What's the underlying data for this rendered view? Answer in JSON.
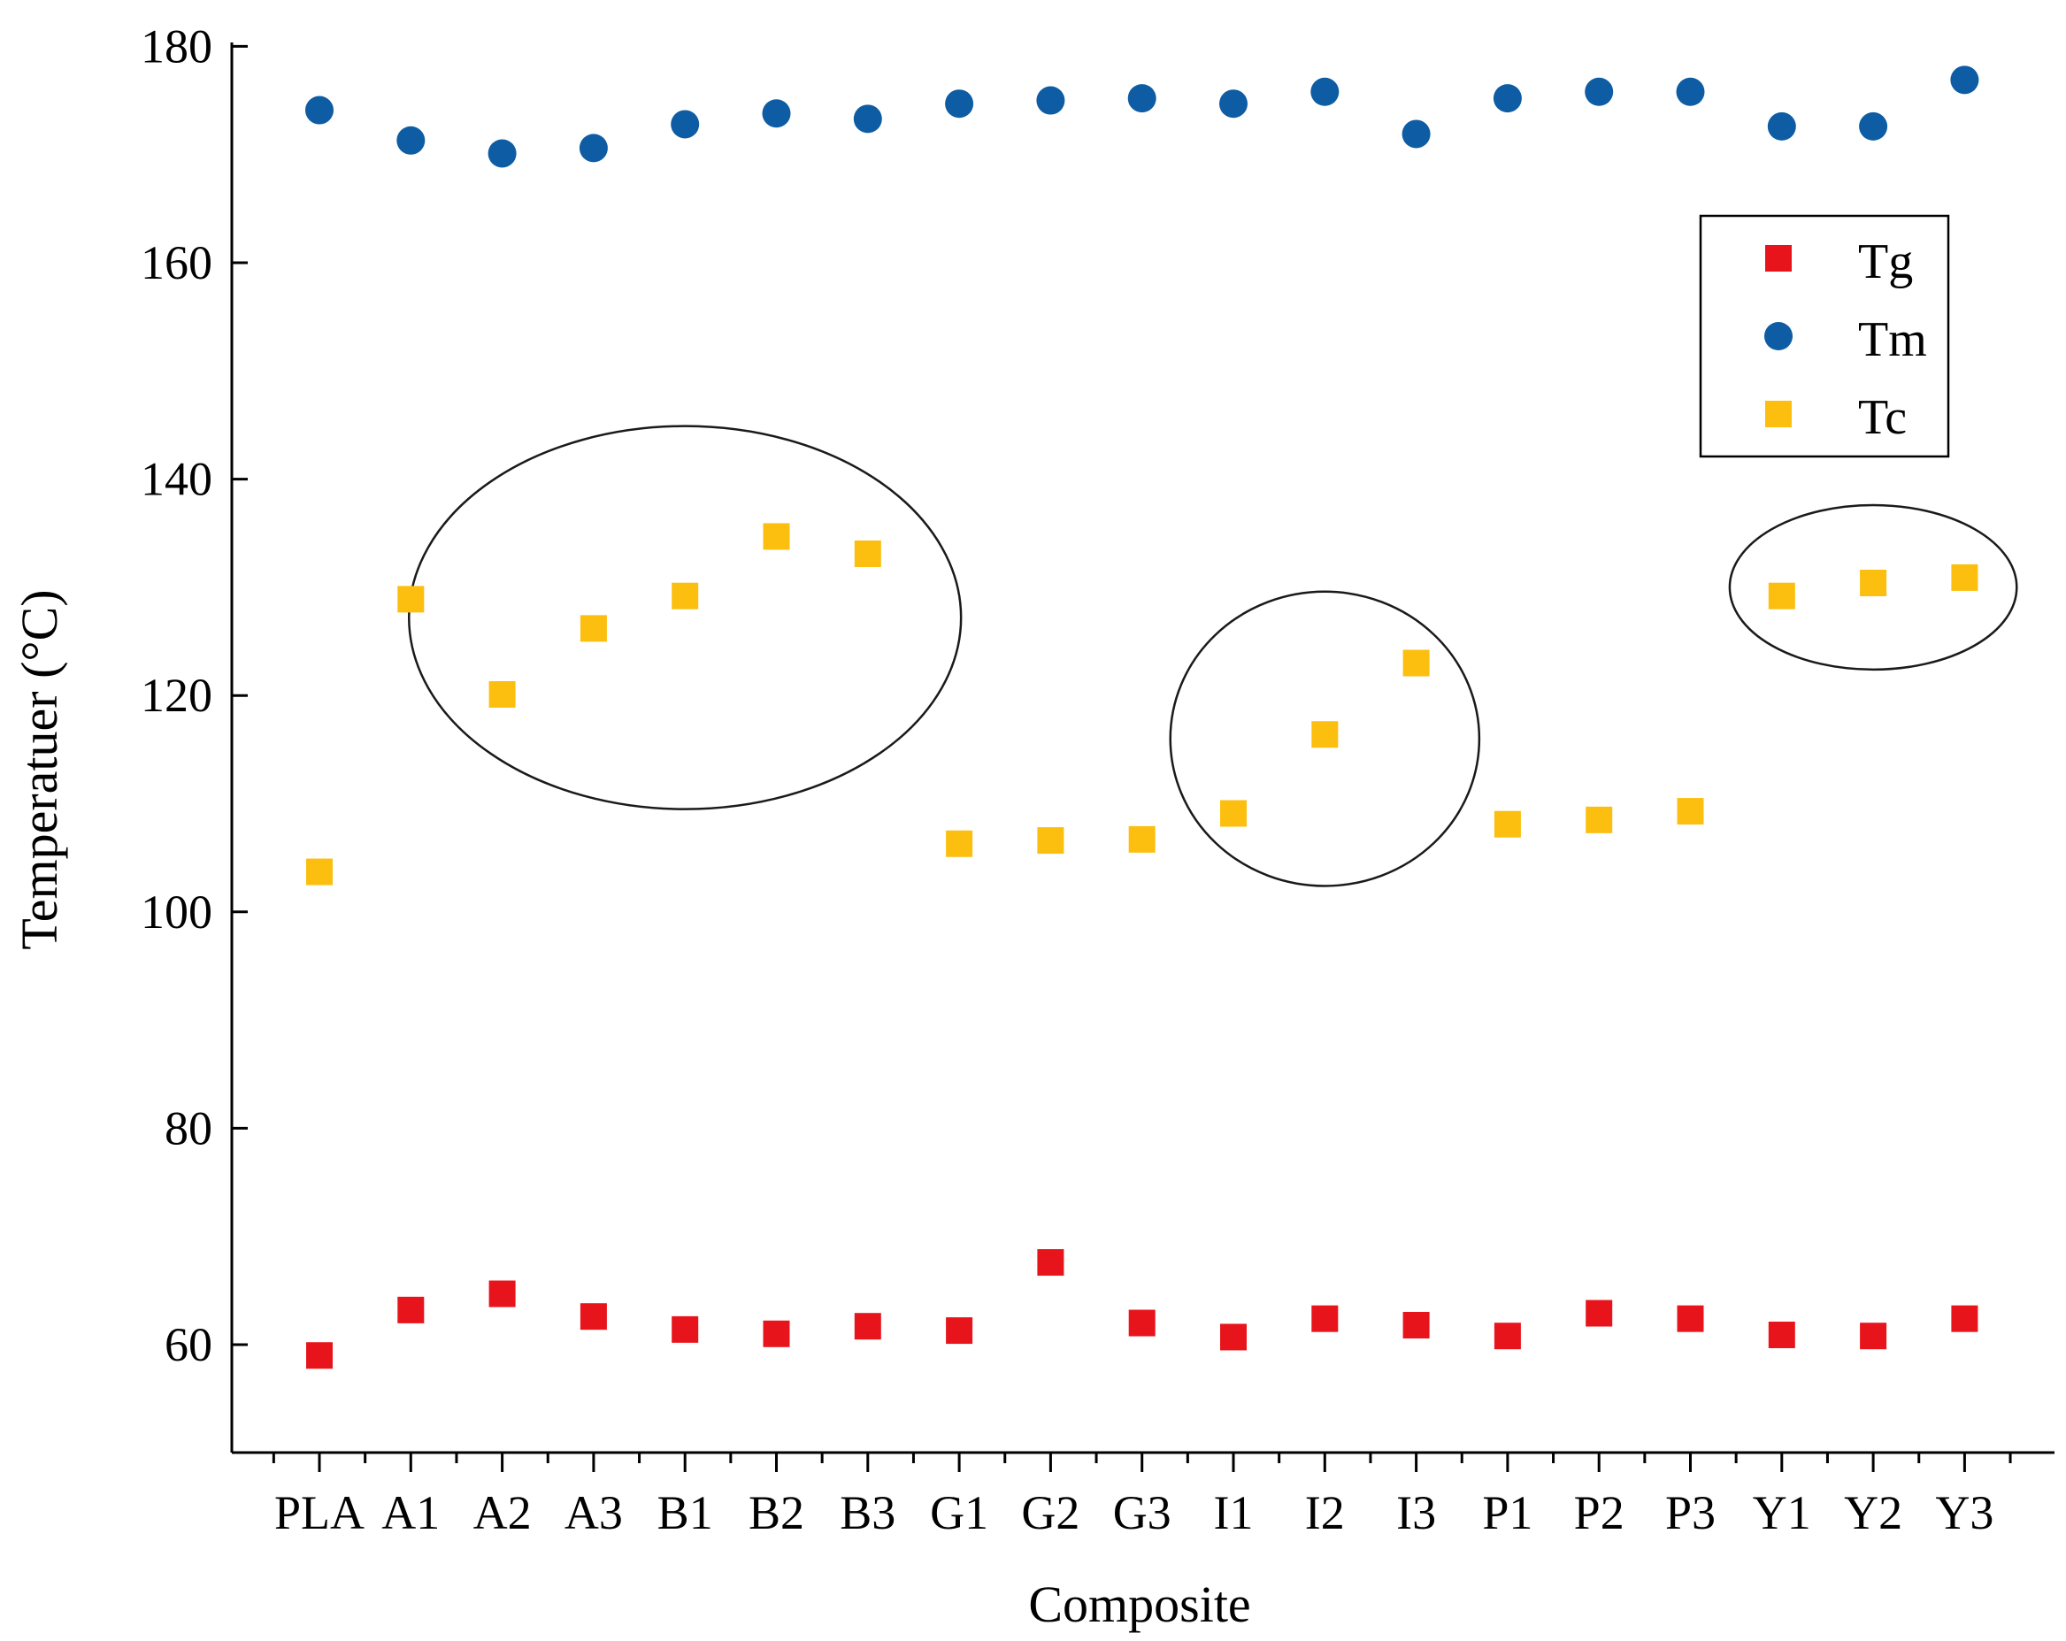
{
  "chart_data": {
    "type": "scatter",
    "title": "",
    "xlabel": "Composite",
    "ylabel": "Temperatuer (°C)",
    "categories": [
      "PLA",
      "A1",
      "A2",
      "A3",
      "B1",
      "B2",
      "B3",
      "G1",
      "G2",
      "G3",
      "I1",
      "I2",
      "I3",
      "P1",
      "P2",
      "P3",
      "Y1",
      "Y2",
      "Y3"
    ],
    "ylim": [
      50,
      180
    ],
    "yticks": [
      60,
      80,
      100,
      120,
      140,
      160,
      180
    ],
    "grid": false,
    "legend_position": "top-right",
    "series": [
      {
        "name": "Tg",
        "marker": "square",
        "color": "#e8141c",
        "values": [
          59.0,
          63.2,
          64.7,
          62.6,
          61.4,
          61.0,
          61.7,
          61.3,
          67.6,
          62.0,
          60.7,
          62.4,
          61.8,
          60.8,
          62.9,
          62.4,
          60.9,
          60.8,
          62.4
        ]
      },
      {
        "name": "Tm",
        "marker": "circle",
        "color": "#0e5ca3",
        "values": [
          174.1,
          171.3,
          170.1,
          170.6,
          172.8,
          173.8,
          173.3,
          174.7,
          175.0,
          175.2,
          174.7,
          175.8,
          171.9,
          175.2,
          175.8,
          175.8,
          172.6,
          172.6,
          176.9
        ]
      },
      {
        "name": "Tc",
        "marker": "square",
        "color": "#fcbf0f",
        "values": [
          103.7,
          128.9,
          120.1,
          126.2,
          129.2,
          134.7,
          133.1,
          106.3,
          106.6,
          106.7,
          109.1,
          116.4,
          123.0,
          108.1,
          108.5,
          109.3,
          129.2,
          130.4,
          130.9
        ]
      }
    ],
    "annotations": [
      {
        "shape": "ellipse",
        "label": "",
        "groups": [
          "A1",
          "A2",
          "A3",
          "B1",
          "B2",
          "B3"
        ],
        "center": {
          "category_index": 4.0,
          "y": 127.2
        },
        "radius": {
          "categories": 3.02,
          "y": 17.7
        }
      },
      {
        "shape": "ellipse",
        "label": "",
        "groups": [
          "I1",
          "I2",
          "I3"
        ],
        "center": {
          "category_index": 11.0,
          "y": 116.0
        },
        "radius": {
          "categories": 1.69,
          "y": 13.6
        }
      },
      {
        "shape": "ellipse",
        "label": "",
        "groups": [
          "Y1",
          "Y2",
          "Y3"
        ],
        "center": {
          "category_index": 17.0,
          "y": 130.0
        },
        "radius": {
          "categories": 1.57,
          "y": 7.6
        }
      }
    ]
  }
}
